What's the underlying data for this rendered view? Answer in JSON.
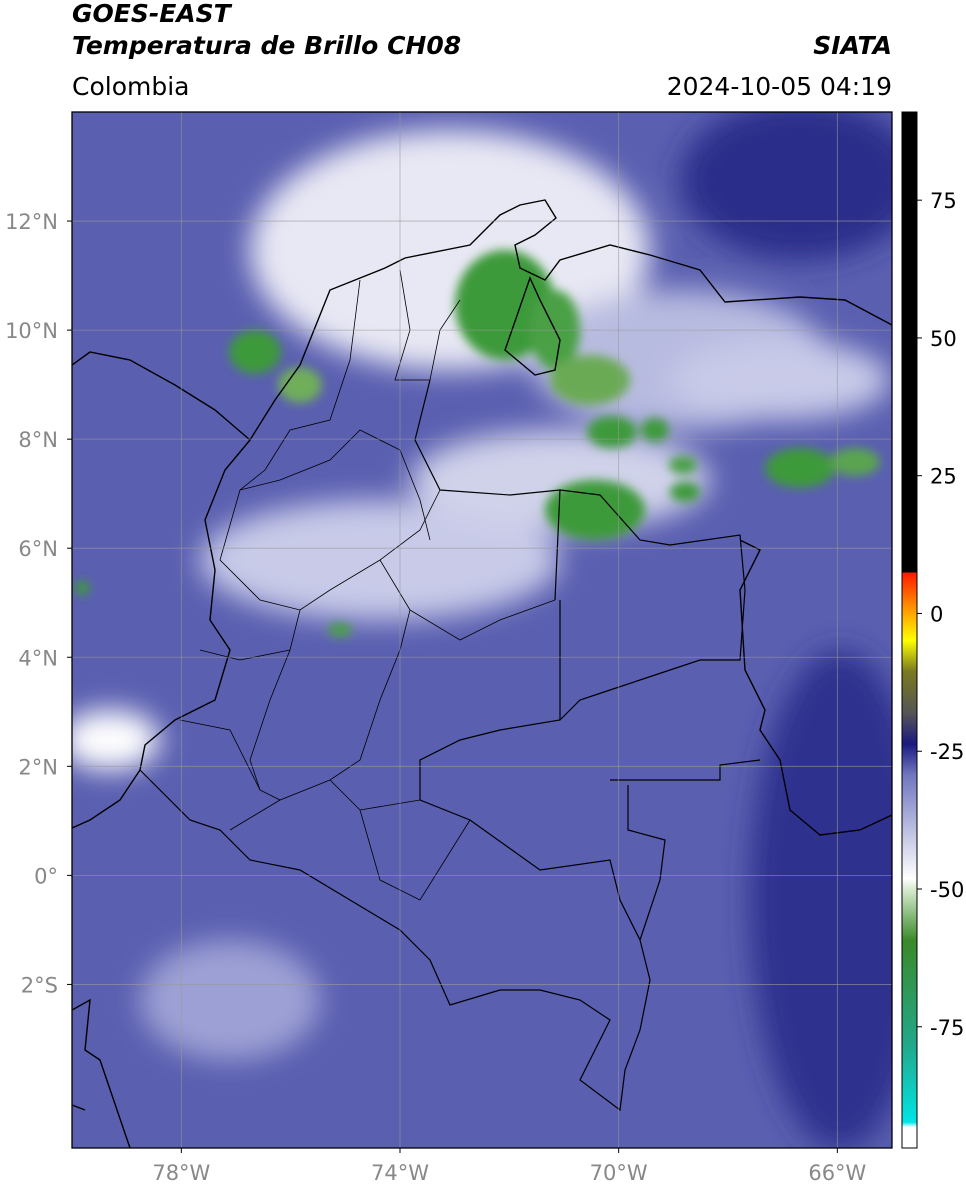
{
  "header": {
    "title_line1": "GOES-EAST",
    "title_line2": "Temperatura de Brillo CH08",
    "source": "SIATA",
    "region": "Colombia",
    "datetime": "2024-10-05 04:19"
  },
  "map": {
    "xlim": [
      -80,
      -65
    ],
    "ylim": [
      -5,
      14
    ],
    "grid": true,
    "xticks": [
      {
        "value": -78,
        "label": "78°W"
      },
      {
        "value": -74,
        "label": "74°W"
      },
      {
        "value": -70,
        "label": "70°W"
      },
      {
        "value": -66,
        "label": "66°W"
      }
    ],
    "yticks": [
      {
        "value": 12,
        "label": "12°N"
      },
      {
        "value": 10,
        "label": "10°N"
      },
      {
        "value": 8,
        "label": "8°N"
      },
      {
        "value": 6,
        "label": "6°N"
      },
      {
        "value": 4,
        "label": "4°N"
      },
      {
        "value": 2,
        "label": "2°N"
      },
      {
        "value": 0,
        "label": "0°"
      },
      {
        "value": -2,
        "label": "2°S"
      }
    ]
  },
  "colorbar": {
    "lim": [
      -97,
      91
    ],
    "ticks": [
      75,
      50,
      25,
      0,
      -25,
      -50,
      -75
    ]
  }
}
